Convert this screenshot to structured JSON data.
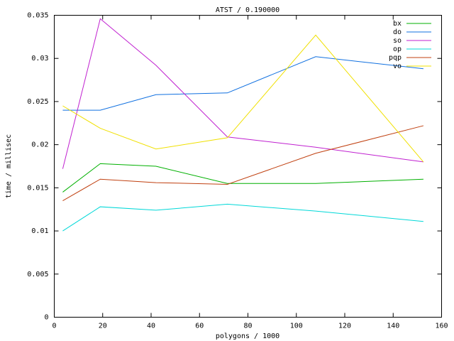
{
  "chart_data": {
    "type": "line",
    "title": "ATST / 0.190000",
    "x_label": "polygons / 1000",
    "y_label": "time / millisec",
    "x": [
      3.5,
      19,
      42,
      71.5,
      108,
      152.5
    ],
    "series": [
      {
        "name": "bx",
        "color": "#00b000",
        "values": [
          0.0145,
          0.0178,
          0.0175,
          0.0155,
          0.0155,
          0.016
        ]
      },
      {
        "name": "do",
        "color": "#1070e0",
        "values": [
          0.024,
          0.024,
          0.0258,
          0.026,
          0.0302,
          0.0288
        ]
      },
      {
        "name": "so",
        "color": "#c020d0",
        "values": [
          0.0172,
          0.0346,
          0.0292,
          0.0209,
          0.0197,
          0.018
        ]
      },
      {
        "name": "op",
        "color": "#00d8d8",
        "values": [
          0.01,
          0.0128,
          0.0124,
          0.0131,
          0.0123,
          0.0111
        ]
      },
      {
        "name": "pqp",
        "color": "#c04010",
        "values": [
          0.0135,
          0.016,
          0.0156,
          0.0154,
          0.019,
          0.0222
        ]
      },
      {
        "name": "vo",
        "color": "#f0e000",
        "values": [
          0.0245,
          0.0219,
          0.0195,
          0.0208,
          0.0327,
          0.018
        ]
      }
    ],
    "xlim": [
      0,
      160
    ],
    "xticks": [
      0,
      20,
      40,
      60,
      80,
      100,
      120,
      140,
      160
    ],
    "ylim": [
      0,
      0.035
    ],
    "yticks": [
      0,
      0.005,
      0.01,
      0.015,
      0.02,
      0.025,
      0.03,
      0.035
    ],
    "grid": false,
    "legend": "top-right"
  }
}
